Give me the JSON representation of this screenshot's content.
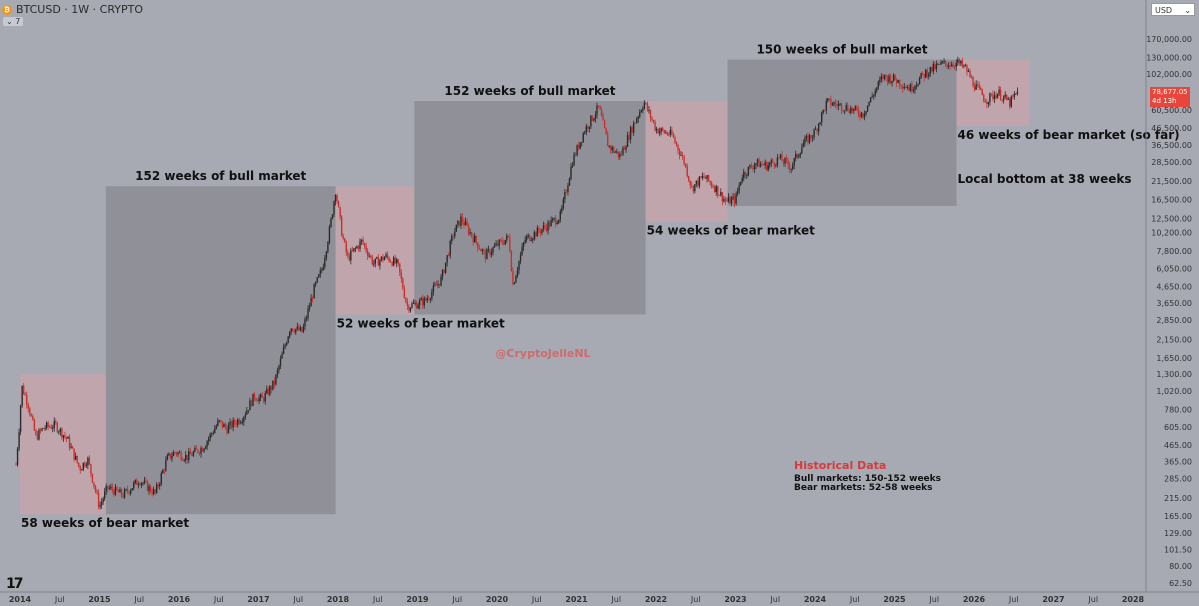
{
  "header": {
    "title": "BTCUSD · 1W · CRYPTO",
    "indicator_count": "7",
    "currency": "USD",
    "btc_symbol": "₿"
  },
  "price_tag": {
    "price": "78,677.05",
    "countdown": "4d 13h"
  },
  "logo": "17",
  "watermark": "@CryptoJelleNL",
  "legend": {
    "title": "Historical Data",
    "lines": [
      "Bull markets: 150-152 weeks",
      "Bear markets: 52-58 weeks"
    ]
  },
  "colors": {
    "background": "#a7a9b3",
    "bull_box": "#8e8f97",
    "bear_box": "#c3a5ab",
    "candle_up": "#2a2a2a",
    "candle_down": "#c9302c",
    "text": "#111111",
    "accent": "#d93a3a"
  },
  "chart_data": {
    "type": "candlestick",
    "y_scale": "log",
    "ylim": [
      62.5,
      200000
    ],
    "x_range": [
      "2014-01",
      "2028-03"
    ],
    "x_ticks": [
      {
        "t": 2014.0,
        "label": "2014"
      },
      {
        "t": 2014.5,
        "label": "Jul"
      },
      {
        "t": 2015.0,
        "label": "2015"
      },
      {
        "t": 2015.5,
        "label": "Jul"
      },
      {
        "t": 2016.0,
        "label": "2016"
      },
      {
        "t": 2016.5,
        "label": "Jul"
      },
      {
        "t": 2017.0,
        "label": "2017"
      },
      {
        "t": 2017.5,
        "label": "Jul"
      },
      {
        "t": 2018.0,
        "label": "2018"
      },
      {
        "t": 2018.5,
        "label": "Jul"
      },
      {
        "t": 2019.0,
        "label": "2019"
      },
      {
        "t": 2019.5,
        "label": "Jul"
      },
      {
        "t": 2020.0,
        "label": "2020"
      },
      {
        "t": 2020.5,
        "label": "Jul"
      },
      {
        "t": 2021.0,
        "label": "2021"
      },
      {
        "t": 2021.5,
        "label": "Jul"
      },
      {
        "t": 2022.0,
        "label": "2022"
      },
      {
        "t": 2022.5,
        "label": "Jul"
      },
      {
        "t": 2023.0,
        "label": "2023"
      },
      {
        "t": 2023.5,
        "label": "Jul"
      },
      {
        "t": 2024.0,
        "label": "2024"
      },
      {
        "t": 2024.5,
        "label": "Jul"
      },
      {
        "t": 2025.0,
        "label": "2025"
      },
      {
        "t": 2025.5,
        "label": "Jul"
      },
      {
        "t": 2026.0,
        "label": "2026"
      },
      {
        "t": 2026.5,
        "label": "Jul"
      },
      {
        "t": 2027.0,
        "label": "2027"
      },
      {
        "t": 2027.5,
        "label": "Jul"
      },
      {
        "t": 2028.0,
        "label": "2028"
      }
    ],
    "y_ticks": [
      {
        "v": 170000,
        "label": "170,000.00"
      },
      {
        "v": 130000,
        "label": "130,000.00"
      },
      {
        "v": 102000,
        "label": "102,000.00"
      },
      {
        "v": 60500,
        "label": "60,500.00"
      },
      {
        "v": 46500,
        "label": "46,500.00"
      },
      {
        "v": 36500,
        "label": "36,500.00"
      },
      {
        "v": 28500,
        "label": "28,500.00"
      },
      {
        "v": 21500,
        "label": "21,500.00"
      },
      {
        "v": 16500,
        "label": "16,500.00"
      },
      {
        "v": 12500,
        "label": "12,500.00"
      },
      {
        "v": 10200,
        "label": "10,200.00"
      },
      {
        "v": 7800,
        "label": "7,800.00"
      },
      {
        "v": 6050,
        "label": "6,050.00"
      },
      {
        "v": 4650,
        "label": "4,650.00"
      },
      {
        "v": 3650,
        "label": "3,650.00"
      },
      {
        "v": 2850,
        "label": "2,850.00"
      },
      {
        "v": 2150,
        "label": "2,150.00"
      },
      {
        "v": 1650,
        "label": "1,650.00"
      },
      {
        "v": 1300,
        "label": "1,300.00"
      },
      {
        "v": 1020,
        "label": "1,020.00"
      },
      {
        "v": 780,
        "label": "780.00"
      },
      {
        "v": 605,
        "label": "605.00"
      },
      {
        "v": 465,
        "label": "465.00"
      },
      {
        "v": 365,
        "label": "365.00"
      },
      {
        "v": 285,
        "label": "285.00"
      },
      {
        "v": 215,
        "label": "215.00"
      },
      {
        "v": 165,
        "label": "165.00"
      },
      {
        "v": 129,
        "label": "129.00"
      },
      {
        "v": 101.5,
        "label": "101.50"
      },
      {
        "v": 80,
        "label": "80.00"
      },
      {
        "v": 62.5,
        "label": "62.50"
      }
    ],
    "price_path": [
      [
        2013.95,
        350
      ],
      [
        2014.0,
        700
      ],
      [
        2014.02,
        1100
      ],
      [
        2014.1,
        850
      ],
      [
        2014.2,
        520
      ],
      [
        2014.3,
        600
      ],
      [
        2014.45,
        620
      ],
      [
        2014.6,
        500
      ],
      [
        2014.75,
        330
      ],
      [
        2014.85,
        380
      ],
      [
        2015.0,
        190
      ],
      [
        2015.1,
        250
      ],
      [
        2015.3,
        225
      ],
      [
        2015.5,
        280
      ],
      [
        2015.7,
        230
      ],
      [
        2015.85,
        380
      ],
      [
        2015.95,
        420
      ],
      [
        2016.1,
        390
      ],
      [
        2016.3,
        450
      ],
      [
        2016.5,
        650
      ],
      [
        2016.6,
        590
      ],
      [
        2016.8,
        700
      ],
      [
        2016.95,
        950
      ],
      [
        2017.05,
        900
      ],
      [
        2017.2,
        1150
      ],
      [
        2017.4,
        2600
      ],
      [
        2017.55,
        2400
      ],
      [
        2017.7,
        4500
      ],
      [
        2017.8,
        6000
      ],
      [
        2017.9,
        11000
      ],
      [
        2017.97,
        19000
      ],
      [
        2018.05,
        10000
      ],
      [
        2018.12,
        7000
      ],
      [
        2018.3,
        9000
      ],
      [
        2018.45,
        6500
      ],
      [
        2018.6,
        7200
      ],
      [
        2018.75,
        6400
      ],
      [
        2018.87,
        3500
      ],
      [
        2018.97,
        3600
      ],
      [
        2019.1,
        3800
      ],
      [
        2019.3,
        5200
      ],
      [
        2019.45,
        10000
      ],
      [
        2019.55,
        12500
      ],
      [
        2019.7,
        9500
      ],
      [
        2019.85,
        7300
      ],
      [
        2020.0,
        8500
      ],
      [
        2020.15,
        9500
      ],
      [
        2020.2,
        4800
      ],
      [
        2020.35,
        9200
      ],
      [
        2020.6,
        11000
      ],
      [
        2020.8,
        13000
      ],
      [
        2020.95,
        29000
      ],
      [
        2021.1,
        45000
      ],
      [
        2021.28,
        63000
      ],
      [
        2021.4,
        36000
      ],
      [
        2021.55,
        31000
      ],
      [
        2021.7,
        47000
      ],
      [
        2021.85,
        68000
      ],
      [
        2022.0,
        46000
      ],
      [
        2022.2,
        42000
      ],
      [
        2022.35,
        29000
      ],
      [
        2022.45,
        19500
      ],
      [
        2022.6,
        23000
      ],
      [
        2022.75,
        19500
      ],
      [
        2022.88,
        16000
      ],
      [
        2023.0,
        16500
      ],
      [
        2023.08,
        23500
      ],
      [
        2023.25,
        28000
      ],
      [
        2023.4,
        27000
      ],
      [
        2023.55,
        30000
      ],
      [
        2023.7,
        26500
      ],
      [
        2023.85,
        37000
      ],
      [
        2024.0,
        44000
      ],
      [
        2024.15,
        68000
      ],
      [
        2024.4,
        63000
      ],
      [
        2024.6,
        57000
      ],
      [
        2024.85,
        98000
      ],
      [
        2025.0,
        95000
      ],
      [
        2025.2,
        83000
      ],
      [
        2025.4,
        105000
      ],
      [
        2025.6,
        118000
      ],
      [
        2025.8,
        120000
      ],
      [
        2025.9,
        110000
      ],
      [
        2026.0,
        88000
      ],
      [
        2026.15,
        70000
      ],
      [
        2026.3,
        78000
      ],
      [
        2026.45,
        67000
      ],
      [
        2026.55,
        78677
      ]
    ],
    "cycles": [
      {
        "kind": "bear",
        "label": "58 weeks of bear market",
        "t0": 2014.0,
        "t1": 2015.08,
        "hi": 1300,
        "lo": 170
      },
      {
        "kind": "bull",
        "label": "152 weeks of bull market",
        "t0": 2015.08,
        "t1": 2017.97,
        "hi": 20000,
        "lo": 170
      },
      {
        "kind": "bear",
        "label": "52 weeks of bear market",
        "t0": 2017.97,
        "t1": 2018.96,
        "hi": 20000,
        "lo": 3100
      },
      {
        "kind": "bull",
        "label": "152 weeks of bull market",
        "t0": 2018.96,
        "t1": 2021.87,
        "hi": 69000,
        "lo": 3100
      },
      {
        "kind": "bear",
        "label": "54 weeks of bear market",
        "t0": 2021.87,
        "t1": 2022.9,
        "hi": 69000,
        "lo": 12000
      },
      {
        "kind": "bull",
        "label": "150 weeks of bull market",
        "t0": 2022.9,
        "t1": 2025.78,
        "hi": 126000,
        "lo": 15000
      },
      {
        "kind": "bear",
        "label": "46 weeks of bear market (so far)",
        "t0": 2025.78,
        "t1": 2026.7,
        "hi": 126000,
        "lo": 48000
      }
    ],
    "annotations": [
      {
        "text": "Local bottom at 38 weeks"
      }
    ]
  }
}
